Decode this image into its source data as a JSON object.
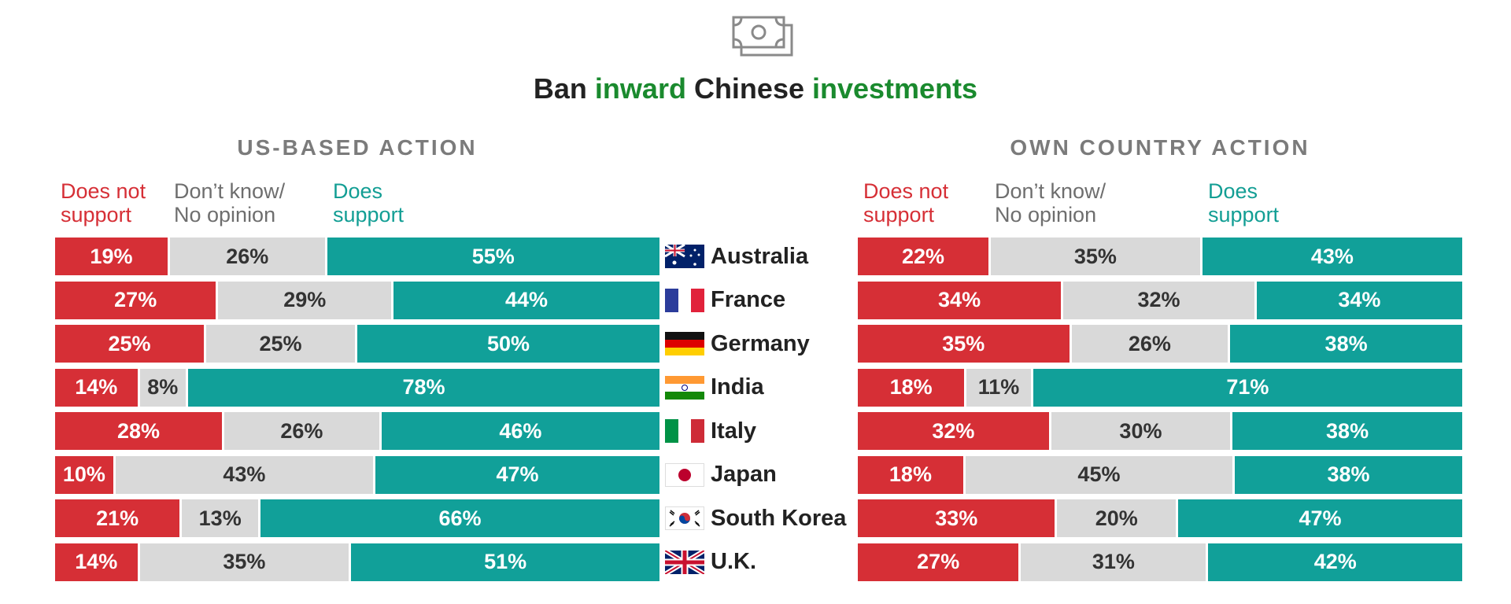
{
  "icon": "money-bill-icon",
  "title_parts": [
    "Ban ",
    "inward",
    " Chinese ",
    "investments"
  ],
  "colors": {
    "does_not_support": "#d62f36",
    "dont_know": "#d9d9d9",
    "does_support": "#11a099",
    "title_highlight": "#1a8a2e"
  },
  "legend": {
    "does_not_support": "Does not\nsupport",
    "dont_know": "Don’t know/\nNo opinion",
    "does_support": "Does\nsupport"
  },
  "countries": [
    {
      "name": "Australia",
      "flag": "australia-flag-icon"
    },
    {
      "name": "France",
      "flag": "france-flag-icon"
    },
    {
      "name": "Germany",
      "flag": "germany-flag-icon"
    },
    {
      "name": "India",
      "flag": "india-flag-icon"
    },
    {
      "name": "Italy",
      "flag": "italy-flag-icon"
    },
    {
      "name": "Japan",
      "flag": "japan-flag-icon"
    },
    {
      "name": "South Korea",
      "flag": "south-korea-flag-icon"
    },
    {
      "name": "U.K.",
      "flag": "uk-flag-icon"
    }
  ],
  "chart_data": [
    {
      "type": "bar",
      "stacked": true,
      "orientation": "horizontal",
      "title": "US-BASED ACTION",
      "categories": [
        "Australia",
        "France",
        "Germany",
        "India",
        "Italy",
        "Japan",
        "South Korea",
        "U.K."
      ],
      "series": [
        {
          "name": "Does not support",
          "values": [
            19,
            27,
            25,
            14,
            28,
            10,
            21,
            14
          ]
        },
        {
          "name": "Don’t know/ No opinion",
          "values": [
            26,
            29,
            25,
            8,
            26,
            43,
            13,
            35
          ]
        },
        {
          "name": "Does support",
          "values": [
            55,
            44,
            50,
            78,
            46,
            47,
            66,
            51
          ]
        }
      ],
      "value_suffix": "%"
    },
    {
      "type": "bar",
      "stacked": true,
      "orientation": "horizontal",
      "title": "OWN COUNTRY ACTION",
      "categories": [
        "Australia",
        "France",
        "Germany",
        "India",
        "Italy",
        "Japan",
        "South Korea",
        "U.K."
      ],
      "series": [
        {
          "name": "Does not support",
          "values": [
            22,
            34,
            35,
            18,
            32,
            18,
            33,
            27
          ]
        },
        {
          "name": "Don’t know/ No opinion",
          "values": [
            35,
            32,
            26,
            11,
            30,
            45,
            20,
            31
          ]
        },
        {
          "name": "Does support",
          "values": [
            43,
            34,
            38,
            71,
            38,
            38,
            47,
            42
          ]
        }
      ],
      "value_suffix": "%"
    }
  ]
}
